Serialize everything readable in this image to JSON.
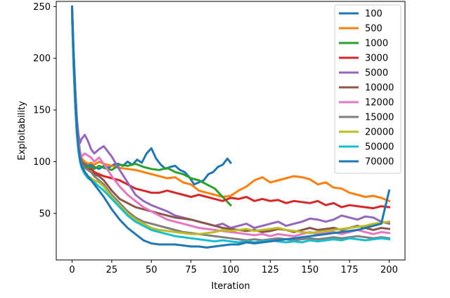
{
  "chart_data": {
    "type": "line",
    "title": "",
    "xlabel": "Iteration",
    "ylabel": "Exploitability",
    "xlim": [
      -10,
      210
    ],
    "ylim": [
      5,
      255
    ],
    "xticks": [
      0,
      25,
      50,
      75,
      100,
      125,
      150,
      175,
      200
    ],
    "yticks": [
      50,
      100,
      150,
      200,
      250
    ],
    "grid": false,
    "legend_position": "top-right",
    "series": [
      {
        "name": "100",
        "color": "#1f77b4",
        "x": [
          0,
          1,
          2,
          3,
          4,
          5,
          6,
          8,
          10,
          12,
          14,
          17,
          20,
          23,
          26,
          29,
          32,
          35,
          38,
          41,
          44,
          47,
          50,
          53,
          56,
          59,
          62,
          65,
          68,
          71,
          74,
          77,
          80,
          83,
          86,
          89,
          92,
          95,
          98,
          100
        ],
        "y": [
          250,
          205,
          170,
          140,
          122,
          110,
          102,
          98,
          96,
          97,
          95,
          93,
          96,
          94,
          97,
          98,
          96,
          100,
          97,
          102,
          99,
          108,
          113,
          103,
          97,
          93,
          95,
          96,
          92,
          90,
          85,
          78,
          80,
          82,
          88,
          90,
          95,
          97,
          103,
          99
        ]
      },
      {
        "name": "500",
        "color": "#ff7f0e",
        "x": [
          0,
          1,
          2,
          3,
          4,
          5,
          6,
          8,
          10,
          12,
          14,
          17,
          20,
          25,
          30,
          35,
          40,
          45,
          50,
          55,
          60,
          65,
          70,
          75,
          80,
          85,
          90,
          95,
          100,
          105,
          110,
          115,
          120,
          125,
          130,
          135,
          140,
          145,
          150,
          155,
          160,
          165,
          170,
          175,
          180,
          185,
          190,
          195,
          200
        ],
        "y": [
          248,
          200,
          165,
          138,
          120,
          110,
          103,
          100,
          98,
          99,
          97,
          100,
          98,
          96,
          94,
          93,
          92,
          90,
          88,
          86,
          84,
          85,
          80,
          78,
          72,
          70,
          68,
          66,
          67,
          72,
          76,
          82,
          85,
          80,
          82,
          84,
          86,
          85,
          83,
          78,
          80,
          75,
          74,
          70,
          68,
          66,
          67,
          65,
          62
        ]
      },
      {
        "name": "1000",
        "color": "#2ca02c",
        "x": [
          0,
          1,
          2,
          3,
          4,
          5,
          6,
          8,
          10,
          12,
          14,
          17,
          20,
          25,
          30,
          35,
          40,
          45,
          50,
          55,
          60,
          65,
          70,
          75,
          80,
          85,
          90,
          95,
          100
        ],
        "y": [
          245,
          198,
          162,
          135,
          118,
          107,
          100,
          96,
          94,
          95,
          93,
          96,
          94,
          92,
          97,
          96,
          98,
          95,
          93,
          92,
          94,
          90,
          88,
          84,
          82,
          78,
          74,
          66,
          58
        ]
      },
      {
        "name": "3000",
        "color": "#d62728",
        "x": [
          0,
          1,
          2,
          3,
          4,
          5,
          6,
          8,
          10,
          12,
          14,
          17,
          20,
          25,
          30,
          35,
          40,
          45,
          50,
          55,
          60,
          65,
          70,
          75,
          80,
          85,
          90,
          95,
          100,
          105,
          110,
          115,
          120,
          125,
          130,
          135,
          140,
          145,
          150,
          155,
          160,
          165,
          170,
          175,
          180,
          185,
          190,
          195,
          200
        ],
        "y": [
          246,
          195,
          158,
          132,
          116,
          106,
          100,
          95,
          92,
          93,
          90,
          88,
          86,
          84,
          82,
          78,
          74,
          72,
          70,
          70,
          72,
          70,
          68,
          66,
          68,
          66,
          64,
          62,
          65,
          64,
          66,
          62,
          64,
          62,
          63,
          60,
          62,
          61,
          60,
          62,
          58,
          60,
          56,
          58,
          57,
          56,
          55,
          57,
          56
        ]
      },
      {
        "name": "5000",
        "color": "#9467bd",
        "x": [
          0,
          1,
          2,
          3,
          4,
          5,
          6,
          8,
          10,
          12,
          14,
          17,
          20,
          25,
          30,
          35,
          40,
          45,
          50,
          55,
          60,
          65,
          70,
          75,
          80,
          85,
          90,
          95,
          100,
          105,
          110,
          115,
          120,
          125,
          130,
          135,
          140,
          145,
          150,
          155,
          160,
          165,
          170,
          175,
          180,
          185,
          190,
          195,
          200
        ],
        "y": [
          247,
          200,
          168,
          142,
          126,
          118,
          122,
          126,
          120,
          112,
          108,
          112,
          115,
          105,
          92,
          80,
          68,
          62,
          58,
          55,
          52,
          48,
          46,
          44,
          42,
          40,
          38,
          40,
          36,
          38,
          40,
          36,
          38,
          40,
          42,
          38,
          40,
          42,
          45,
          44,
          42,
          44,
          48,
          46,
          44,
          47,
          46,
          42,
          40
        ]
      },
      {
        "name": "10000",
        "color": "#8c564b",
        "x": [
          0,
          1,
          2,
          3,
          4,
          5,
          6,
          8,
          10,
          12,
          14,
          17,
          20,
          25,
          30,
          35,
          40,
          45,
          50,
          55,
          60,
          65,
          70,
          75,
          80,
          85,
          90,
          95,
          100,
          105,
          110,
          115,
          120,
          125,
          130,
          135,
          140,
          145,
          150,
          155,
          160,
          165,
          170,
          175,
          180,
          185,
          190,
          195,
          200
        ],
        "y": [
          244,
          196,
          160,
          134,
          118,
          108,
          100,
          95,
          92,
          90,
          88,
          86,
          82,
          72,
          64,
          60,
          56,
          54,
          52,
          50,
          48,
          46,
          45,
          44,
          42,
          40,
          38,
          36,
          35,
          34,
          33,
          34,
          32,
          33,
          35,
          34,
          32,
          34,
          36,
          34,
          35,
          36,
          34,
          36,
          38,
          36,
          34,
          36,
          35
        ]
      },
      {
        "name": "12000",
        "color": "#e377c2",
        "x": [
          0,
          1,
          2,
          3,
          4,
          5,
          6,
          8,
          10,
          12,
          14,
          17,
          20,
          25,
          30,
          35,
          40,
          45,
          50,
          55,
          60,
          65,
          70,
          75,
          80,
          85,
          90,
          95,
          100,
          105,
          110,
          115,
          120,
          125,
          130,
          135,
          140,
          145,
          150,
          155,
          160,
          165,
          170,
          175,
          180,
          185,
          190,
          195,
          200
        ],
        "y": [
          243,
          195,
          158,
          132,
          118,
          110,
          105,
          108,
          106,
          104,
          100,
          104,
          98,
          86,
          76,
          68,
          62,
          56,
          52,
          48,
          44,
          42,
          40,
          38,
          36,
          35,
          34,
          33,
          32,
          31,
          30,
          29,
          30,
          28,
          30,
          29,
          28,
          30,
          32,
          30,
          31,
          32,
          30,
          32,
          34,
          32,
          30,
          32,
          31
        ]
      },
      {
        "name": "15000",
        "color": "#7f7f7f",
        "x": [
          0,
          1,
          2,
          3,
          4,
          5,
          6,
          8,
          10,
          12,
          14,
          17,
          20,
          25,
          30,
          35,
          40,
          45,
          50,
          55,
          60,
          65,
          70,
          75,
          80,
          85,
          90,
          95,
          100,
          105,
          110,
          115,
          120,
          125,
          130,
          135,
          140,
          145,
          150,
          155,
          160,
          165,
          170,
          175,
          180,
          185,
          190,
          195,
          200
        ],
        "y": [
          242,
          193,
          156,
          130,
          114,
          105,
          98,
          94,
          92,
          90,
          86,
          82,
          78,
          68,
          60,
          52,
          46,
          42,
          40,
          38,
          36,
          34,
          32,
          31,
          30,
          29,
          28,
          27,
          26,
          25,
          24,
          25,
          24,
          25,
          26,
          25,
          24,
          25,
          26,
          25,
          26,
          27,
          26,
          27,
          28,
          27,
          26,
          27,
          26
        ]
      },
      {
        "name": "20000",
        "color": "#bcbd22",
        "x": [
          0,
          1,
          2,
          3,
          4,
          5,
          6,
          8,
          10,
          12,
          14,
          17,
          20,
          25,
          30,
          35,
          40,
          45,
          50,
          55,
          60,
          65,
          70,
          75,
          80,
          85,
          90,
          95,
          100,
          105,
          110,
          115,
          120,
          125,
          130,
          135,
          140,
          145,
          150,
          155,
          160,
          165,
          170,
          175,
          180,
          185,
          190,
          195,
          200
        ],
        "y": [
          241,
          192,
          154,
          128,
          112,
          102,
          96,
          90,
          86,
          84,
          82,
          80,
          76,
          66,
          58,
          50,
          44,
          40,
          36,
          34,
          33,
          32,
          31,
          30,
          30,
          31,
          32,
          34,
          33,
          34,
          35,
          33,
          34,
          35,
          36,
          34,
          33,
          32,
          31,
          32,
          33,
          34,
          35,
          36,
          37,
          38,
          40,
          41,
          42
        ]
      },
      {
        "name": "50000",
        "color": "#17becf",
        "x": [
          0,
          1,
          2,
          3,
          4,
          5,
          6,
          8,
          10,
          12,
          14,
          17,
          20,
          25,
          30,
          35,
          40,
          45,
          50,
          55,
          60,
          65,
          70,
          75,
          80,
          85,
          90,
          95,
          100,
          105,
          110,
          115,
          120,
          125,
          130,
          135,
          140,
          145,
          150,
          155,
          160,
          165,
          170,
          175,
          180,
          185,
          190,
          195,
          200
        ],
        "y": [
          240,
          190,
          152,
          126,
          110,
          100,
          94,
          88,
          84,
          82,
          80,
          76,
          72,
          64,
          56,
          48,
          42,
          38,
          34,
          32,
          30,
          28,
          27,
          26,
          25,
          24,
          23,
          24,
          23,
          22,
          23,
          22,
          23,
          24,
          23,
          22,
          23,
          22,
          24,
          23,
          24,
          25,
          24,
          26,
          25,
          24,
          25,
          26,
          25
        ]
      },
      {
        "name": "70000",
        "color": "#1f77b4",
        "x": [
          0,
          1,
          2,
          3,
          4,
          5,
          6,
          8,
          10,
          12,
          14,
          17,
          20,
          25,
          30,
          35,
          40,
          45,
          50,
          55,
          60,
          65,
          70,
          75,
          80,
          85,
          90,
          95,
          100,
          105,
          110,
          115,
          120,
          125,
          130,
          135,
          140,
          145,
          150,
          155,
          160,
          165,
          170,
          175,
          180,
          185,
          190,
          195,
          200
        ],
        "y": [
          250,
          200,
          160,
          132,
          114,
          103,
          96,
          90,
          86,
          82,
          78,
          72,
          66,
          54,
          44,
          36,
          30,
          24,
          21,
          20,
          20,
          20,
          19,
          18,
          18,
          17,
          18,
          19,
          20,
          20,
          22,
          21,
          22,
          23,
          24,
          25,
          26,
          27,
          28,
          29,
          30,
          31,
          32,
          33,
          34,
          36,
          38,
          40,
          72
        ]
      }
    ]
  }
}
